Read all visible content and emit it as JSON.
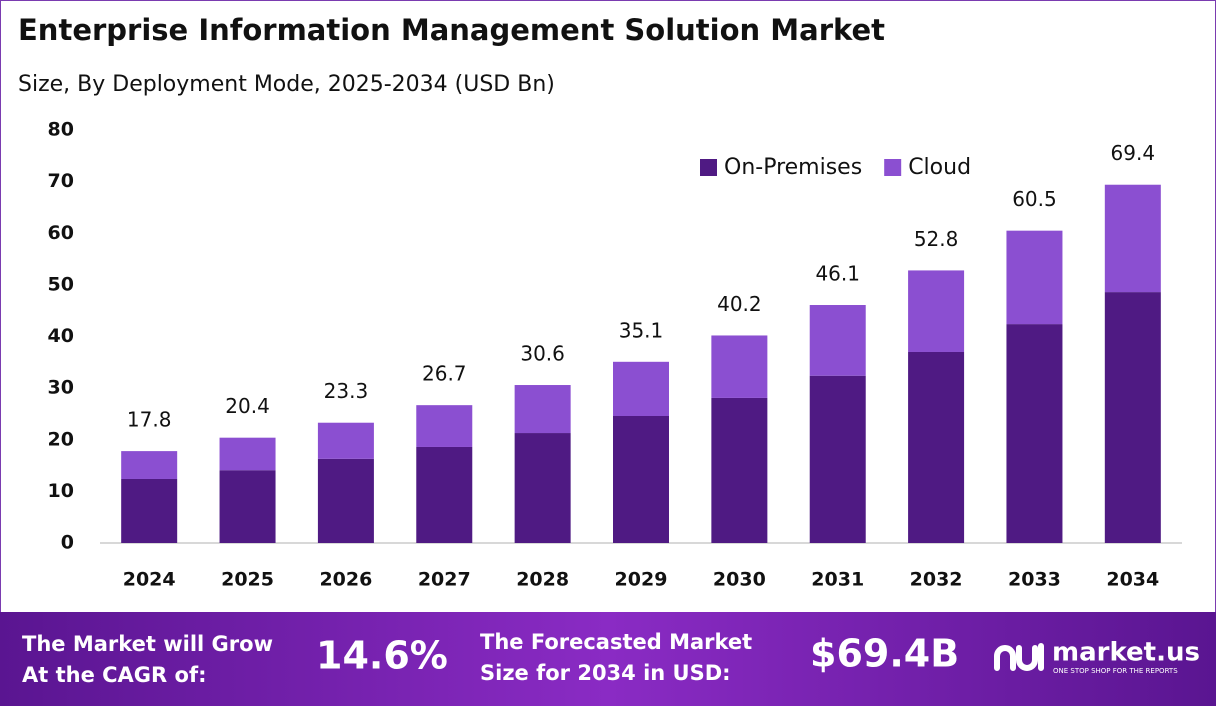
{
  "chart_data": {
    "type": "stacked_bar",
    "title": "Enterprise Information Management Solution Market",
    "subtitle": "Size, By Deployment Mode, 2025-2034 (USD Bn)",
    "categories": [
      "2024",
      "2025",
      "2026",
      "2027",
      "2028",
      "2029",
      "2030",
      "2031",
      "2032",
      "2033",
      "2034"
    ],
    "series": [
      {
        "name": "On-Premises",
        "color": "#4f1a83",
        "values": [
          12.4,
          14.1,
          16.3,
          18.6,
          21.3,
          24.6,
          28.1,
          32.4,
          37.0,
          42.4,
          48.6
        ]
      },
      {
        "name": "Cloud",
        "color": "#8b4fd1",
        "values": [
          5.4,
          6.3,
          7.0,
          8.1,
          9.3,
          10.5,
          12.1,
          13.7,
          15.8,
          18.1,
          20.8
        ]
      }
    ],
    "totals": [
      17.8,
      20.4,
      23.3,
      26.7,
      30.6,
      35.1,
      40.2,
      46.1,
      52.8,
      60.5,
      69.4
    ],
    "ylim": [
      0,
      80
    ],
    "yticks": [
      0,
      10,
      20,
      30,
      40,
      50,
      60,
      70,
      80
    ],
    "grid": false,
    "legend": "top-right"
  },
  "footer": {
    "cagr_label": [
      "The Market will Grow",
      "At the CAGR of:"
    ],
    "cagr": "14.6%",
    "size_label": [
      "The Forecasted Market",
      "Size for 2034 in USD:"
    ],
    "size": "$69.4B",
    "brand": "market.us",
    "tagline": "ONE STOP SHOP FOR THE REPORTS"
  }
}
